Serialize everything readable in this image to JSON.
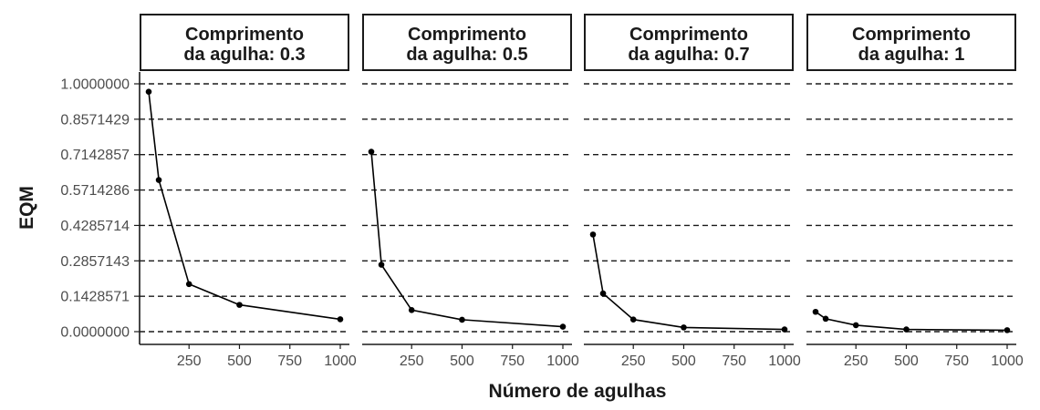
{
  "chart_data": {
    "type": "line",
    "facet_labels": [
      "Comprimento\nda agulha: 0.3",
      "Comprimento\nda agulha: 0.5",
      "Comprimento\nda agulha: 0.7",
      "Comprimento\nda agulha: 1"
    ],
    "xlabel": "Número de agulhas",
    "ylabel": "EQM",
    "x_ticks": [
      250,
      500,
      750,
      1000
    ],
    "y_ticks": [
      "0.0000000",
      "0.1428571",
      "0.2857143",
      "0.4285714",
      "0.5714286",
      "0.7142857",
      "0.8571429",
      "1.0000000"
    ],
    "ylim": [
      0,
      1
    ],
    "xlim": [
      50,
      1000
    ],
    "grid": "horizontal dashed",
    "panels": [
      {
        "x": [
          50,
          100,
          250,
          500,
          1000
        ],
        "y": [
          0.968,
          0.612,
          0.192,
          0.108,
          0.05
        ]
      },
      {
        "x": [
          50,
          100,
          250,
          500,
          1000
        ],
        "y": [
          0.726,
          0.27,
          0.087,
          0.048,
          0.02
        ]
      },
      {
        "x": [
          50,
          100,
          250,
          500,
          1000
        ],
        "y": [
          0.392,
          0.154,
          0.049,
          0.017,
          0.009
        ]
      },
      {
        "x": [
          50,
          100,
          250,
          500,
          1000
        ],
        "y": [
          0.08,
          0.052,
          0.026,
          0.009,
          0.006
        ]
      }
    ],
    "colors": {
      "line": "#000000",
      "point": "#000000",
      "grid": "#1a1a1a",
      "strip_border": "#1a1a1a"
    }
  }
}
